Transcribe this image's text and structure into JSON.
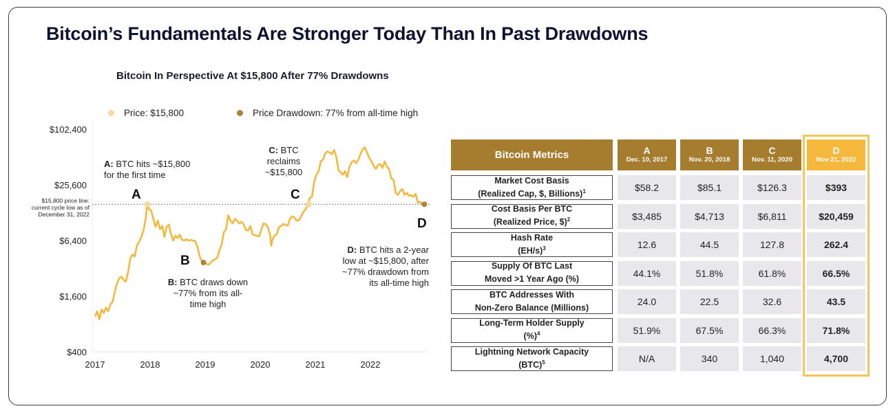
{
  "main_title": "Bitcoin’s Fundamentals Are Stronger Today Than In Past Drawdowns",
  "chart_data": {
    "type": "line",
    "title": "Bitcoin In Perspective At $15,800 After 77% Drawdowns",
    "xlabel": "",
    "ylabel": "",
    "y_scale": "log",
    "ylim": [
      400,
      102400
    ],
    "xlim": [
      2017.0,
      2023.0
    ],
    "grid": false,
    "y_ticks": [
      {
        "value": 102400,
        "label": "$102,400"
      },
      {
        "value": 25600,
        "label": "$25,600"
      },
      {
        "value": 6400,
        "label": "$6,400"
      },
      {
        "value": 1600,
        "label": "$1,600"
      },
      {
        "value": 400,
        "label": "$400"
      }
    ],
    "x_ticks": [
      {
        "value": 2017,
        "label": "2017"
      },
      {
        "value": 2018,
        "label": "2018"
      },
      {
        "value": 2019,
        "label": "2019"
      },
      {
        "value": 2020,
        "label": "2020"
      },
      {
        "value": 2021,
        "label": "2021"
      },
      {
        "value": 2022,
        "label": "2022"
      }
    ],
    "legend": [
      {
        "label": "Price: $15,800",
        "color": "#f3dca3"
      },
      {
        "label": "Price Drawdown: 77% from all-time high",
        "color": "#a8843a"
      }
    ],
    "legend_placement": "top",
    "reference_line": {
      "value": 15800,
      "label": "$15,800 price line: current cycle low as of December 31, 2022"
    },
    "series": [
      {
        "name": "BTC Price",
        "color": "#f5b83d",
        "x": [
          2017.0,
          2017.04,
          2017.08,
          2017.12,
          2017.16,
          2017.2,
          2017.24,
          2017.28,
          2017.32,
          2017.36,
          2017.4,
          2017.44,
          2017.48,
          2017.52,
          2017.56,
          2017.6,
          2017.64,
          2017.68,
          2017.72,
          2017.76,
          2017.8,
          2017.84,
          2017.88,
          2017.92,
          2017.95,
          2017.98,
          2018.02,
          2018.06,
          2018.1,
          2018.14,
          2018.18,
          2018.22,
          2018.26,
          2018.3,
          2018.34,
          2018.38,
          2018.42,
          2018.46,
          2018.5,
          2018.54,
          2018.58,
          2018.62,
          2018.66,
          2018.7,
          2018.74,
          2018.78,
          2018.82,
          2018.86,
          2018.9,
          2018.94,
          2018.98,
          2019.02,
          2019.06,
          2019.1,
          2019.14,
          2019.18,
          2019.22,
          2019.26,
          2019.3,
          2019.34,
          2019.38,
          2019.42,
          2019.46,
          2019.5,
          2019.54,
          2019.58,
          2019.62,
          2019.66,
          2019.7,
          2019.74,
          2019.78,
          2019.82,
          2019.86,
          2019.9,
          2019.94,
          2019.98,
          2020.02,
          2020.06,
          2020.1,
          2020.14,
          2020.18,
          2020.2,
          2020.22,
          2020.26,
          2020.3,
          2020.34,
          2020.38,
          2020.42,
          2020.46,
          2020.5,
          2020.54,
          2020.58,
          2020.62,
          2020.66,
          2020.7,
          2020.74,
          2020.78,
          2020.82,
          2020.86,
          2020.9,
          2020.94,
          2020.98,
          2021.02,
          2021.06,
          2021.1,
          2021.14,
          2021.18,
          2021.22,
          2021.26,
          2021.3,
          2021.34,
          2021.38,
          2021.42,
          2021.46,
          2021.5,
          2021.54,
          2021.58,
          2021.62,
          2021.66,
          2021.7,
          2021.74,
          2021.78,
          2021.82,
          2021.86,
          2021.9,
          2021.94,
          2021.98,
          2022.02,
          2022.06,
          2022.1,
          2022.14,
          2022.18,
          2022.22,
          2022.26,
          2022.3,
          2022.34,
          2022.38,
          2022.42,
          2022.46,
          2022.5,
          2022.54,
          2022.58,
          2022.62,
          2022.66,
          2022.7,
          2022.74,
          2022.78,
          2022.82,
          2022.86,
          2022.9,
          2022.94,
          2022.98
        ],
        "y": [
          960,
          1100,
          900,
          1150,
          1050,
          1200,
          1100,
          1300,
          1400,
          1800,
          2200,
          2500,
          2600,
          2400,
          2300,
          2900,
          4100,
          4500,
          4300,
          5600,
          6200,
          7000,
          8200,
          11000,
          16500,
          14000,
          13500,
          11000,
          9000,
          10500,
          8500,
          9200,
          7000,
          9000,
          9500,
          7500,
          6400,
          7200,
          6800,
          7400,
          6500,
          6400,
          6600,
          6400,
          6500,
          6400,
          6300,
          5500,
          4300,
          3800,
          3700,
          3600,
          3500,
          3700,
          3900,
          4000,
          4200,
          5000,
          5800,
          7900,
          8500,
          12000,
          10500,
          9800,
          11000,
          10500,
          9800,
          10200,
          9500,
          8300,
          8200,
          9200,
          7500,
          7300,
          7200,
          7100,
          8400,
          9800,
          9600,
          8900,
          7300,
          5600,
          6500,
          7200,
          7500,
          8900,
          9200,
          9700,
          9400,
          9300,
          11000,
          11700,
          11400,
          10500,
          10600,
          11500,
          13000,
          13800,
          15500,
          18500,
          19000,
          28000,
          33000,
          36000,
          46000,
          48000,
          56000,
          59000,
          57000,
          55000,
          61000,
          52000,
          37000,
          35000,
          33000,
          36000,
          31000,
          40000,
          45000,
          47000,
          44000,
          48000,
          55000,
          62000,
          65000,
          57000,
          50000,
          46000,
          41000,
          38000,
          42000,
          43000,
          39000,
          46000,
          40000,
          38000,
          30000,
          29000,
          21000,
          20000,
          22000,
          23000,
          20000,
          21000,
          19500,
          19800,
          19000,
          20500,
          16500,
          16800,
          16000,
          15800
        ]
      }
    ],
    "points": [
      {
        "id": "A",
        "x": 2017.95,
        "y": 15800,
        "style": "price",
        "annotation": [
          "A: BTC hits ~$15,800",
          "for the first time"
        ]
      },
      {
        "id": "B",
        "x": 2018.97,
        "y": 3700,
        "style": "drawdown",
        "annotation": [
          "B: BTC draws down",
          "~77% from its all-",
          "time high"
        ]
      },
      {
        "id": "C",
        "x": 2020.88,
        "y": 15800,
        "style": "price",
        "annotation": [
          "C: BTC",
          "reclaims",
          "~$15,800"
        ]
      },
      {
        "id": "D",
        "x": 2022.98,
        "y": 15800,
        "style": "drawdown",
        "annotation": [
          "D: BTC hits a 2-year",
          "low at ~$15,800, after",
          "~77% drawdown from",
          "its all-time high"
        ]
      }
    ]
  },
  "annotations": {
    "A_bold": "A:",
    "A_l1": " BTC hits ~$15,800",
    "A_l2": "for the first time",
    "B_bold": "B:",
    "B_l1": " BTC draws down",
    "B_l2": "~77% from its all-",
    "B_l3": "time high",
    "C_bold": "C:",
    "C_l1": " BTC",
    "C_l2": "reclaims",
    "C_l3": "~$15,800",
    "D_bold": "D:",
    "D_l1": " BTC hits a 2-year",
    "D_l2": "low at ~$15,800, after",
    "D_l3": "~77% drawdown from",
    "D_l4": "its all-time high",
    "side_note": "$15,800 price line: current cycle low as of December 31, 2022"
  },
  "table": {
    "header": "Bitcoin Metrics",
    "columns": [
      {
        "letter": "A",
        "date": "Dec. 10, 2017"
      },
      {
        "letter": "B",
        "date": "Nov. 20, 2018"
      },
      {
        "letter": "C",
        "date": "Nov. 11, 2020"
      },
      {
        "letter": "D",
        "date": "Nov 21, 2022"
      }
    ],
    "rows": [
      {
        "l1": "Market Cost Basis",
        "l2": "(Realized Cap, $, Billions)",
        "sup": "1",
        "values": [
          "$58.2",
          "$85.1",
          "$126.3",
          "$393"
        ]
      },
      {
        "l1": "Cost Basis Per BTC",
        "l2": "(Realized Price, $)",
        "sup": "2",
        "values": [
          "$3,485",
          "$4,713",
          "$6,811",
          "$20,459"
        ]
      },
      {
        "l1": "Hash Rate",
        "l2": "(EH/s)",
        "sup": "3",
        "values": [
          "12.6",
          "44.5",
          "127.8",
          "262.4"
        ]
      },
      {
        "l1": "Supply Of BTC Last",
        "l2": "Moved >1 Year Ago (%)",
        "sup": "",
        "values": [
          "44.1%",
          "51.8%",
          "61.8%",
          "66.5%"
        ]
      },
      {
        "l1": "BTC Addresses With",
        "l2": "Non-Zero Balance (Millions)",
        "sup": "",
        "values": [
          "24.0",
          "22.5",
          "32.6",
          "43.5"
        ]
      },
      {
        "l1": "Long-Term Holder Supply",
        "l2": "(%)",
        "sup": "4",
        "values": [
          "51.9%",
          "67.5%",
          "66.3%",
          "71.8%"
        ]
      },
      {
        "l1": "Lightning Network Capacity",
        "l2": "(BTC)",
        "sup": "5",
        "values": [
          "N/A",
          "340",
          "1,040",
          "4,700"
        ]
      }
    ],
    "highlight_column": "D",
    "colors": {
      "header": "#a67c2e",
      "highlight": "#f5b83d",
      "highlight_border": "#f3c65a",
      "cell": "#e8e8ec"
    }
  }
}
